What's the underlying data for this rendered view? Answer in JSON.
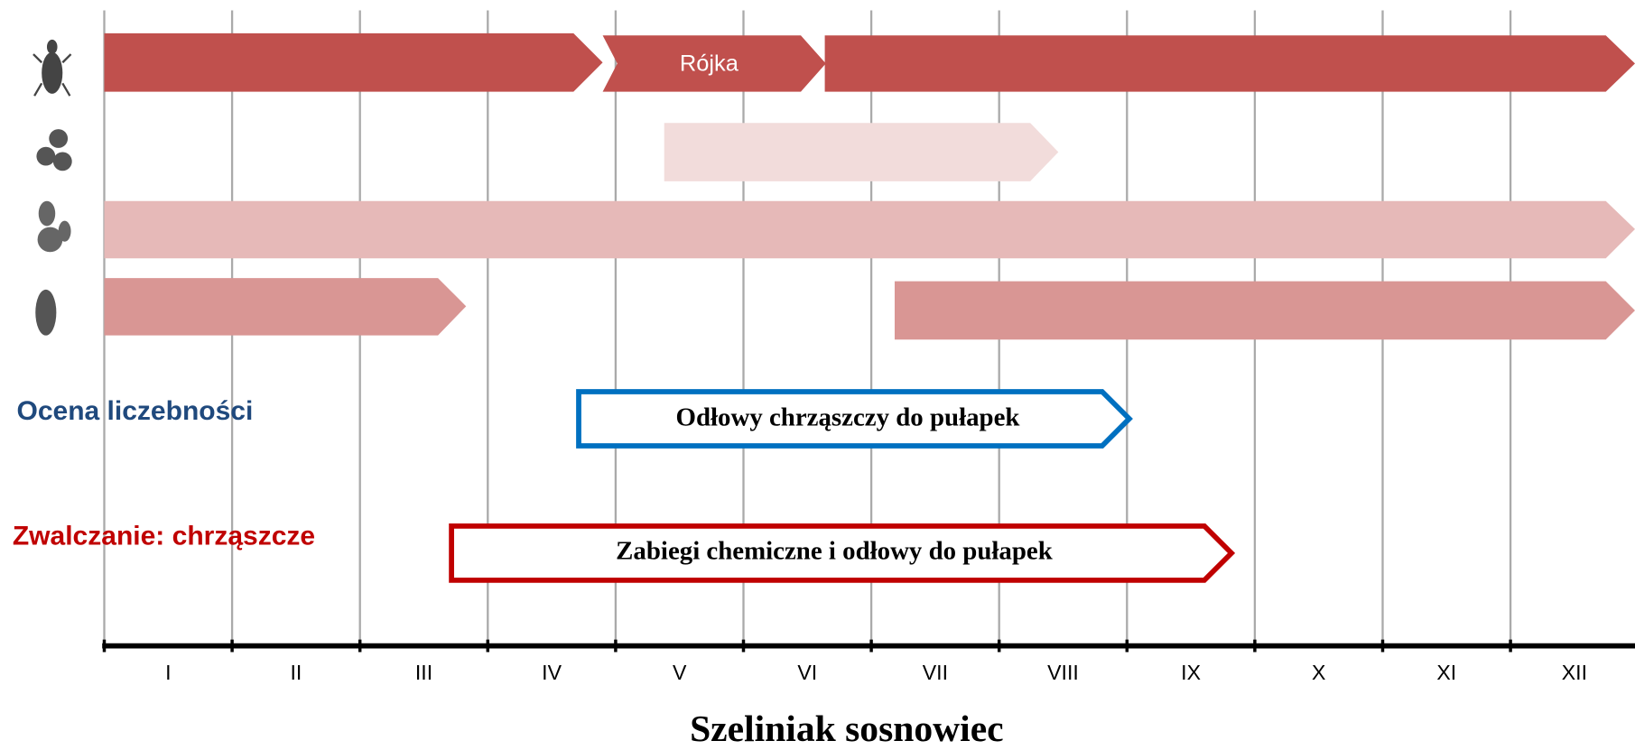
{
  "title": "Szeliniak sosnowiec",
  "months": [
    "I",
    "II",
    "III",
    "IV",
    "V",
    "VI",
    "VII",
    "VIII",
    "IX",
    "X",
    "XI",
    "XII"
  ],
  "stages": {
    "swarming_label": "Rójka"
  },
  "sections": [
    {
      "label": "Ocena liczebności",
      "action": "Odłowy chrząszczy do pułapek"
    },
    {
      "label": "Zwalczanie: chrząszcze",
      "action": "Zabiegi chemiczne i odłowy do pułapek"
    }
  ]
}
